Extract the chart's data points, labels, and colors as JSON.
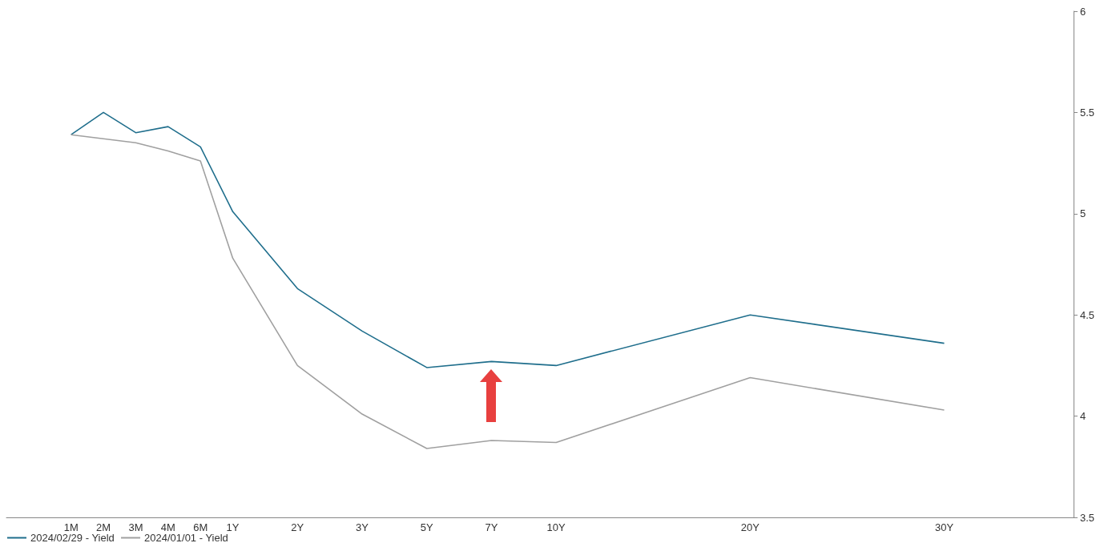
{
  "chart_data": {
    "type": "line",
    "categories": [
      null,
      null,
      "1M",
      "2M",
      "3M",
      "4M",
      "6M",
      "1Y",
      null,
      "2Y",
      null,
      "3Y",
      null,
      "5Y",
      null,
      "7Y",
      null,
      "10Y",
      null,
      null,
      null,
      null,
      null,
      "20Y",
      null,
      null,
      null,
      null,
      null,
      "30Y",
      null,
      null,
      null,
      null
    ],
    "ylim": [
      3.5,
      6
    ],
    "yticks": [
      3.5,
      4,
      4.5,
      5,
      5.5,
      6
    ],
    "series": [
      {
        "name": "2024/02/29 - Yield",
        "color": "#1f6e8c",
        "values": [
          null,
          null,
          5.39,
          5.5,
          5.4,
          5.43,
          5.33,
          5.01,
          null,
          4.63,
          null,
          4.42,
          null,
          4.24,
          null,
          4.27,
          null,
          4.25,
          null,
          null,
          null,
          null,
          null,
          4.5,
          null,
          null,
          null,
          null,
          null,
          4.36,
          null,
          null,
          null,
          null
        ]
      },
      {
        "name": "2024/01/01 - Yield",
        "color": "#a0a0a0",
        "values": [
          null,
          null,
          5.39,
          5.37,
          5.35,
          5.31,
          5.26,
          4.78,
          null,
          4.25,
          null,
          4.01,
          null,
          3.84,
          null,
          3.88,
          null,
          3.87,
          null,
          null,
          null,
          null,
          null,
          4.19,
          null,
          null,
          null,
          null,
          null,
          4.03,
          null,
          null,
          null,
          null
        ]
      }
    ],
    "grid": false,
    "legend": "bottom left",
    "marker": "none",
    "line_style": "solid"
  }
}
